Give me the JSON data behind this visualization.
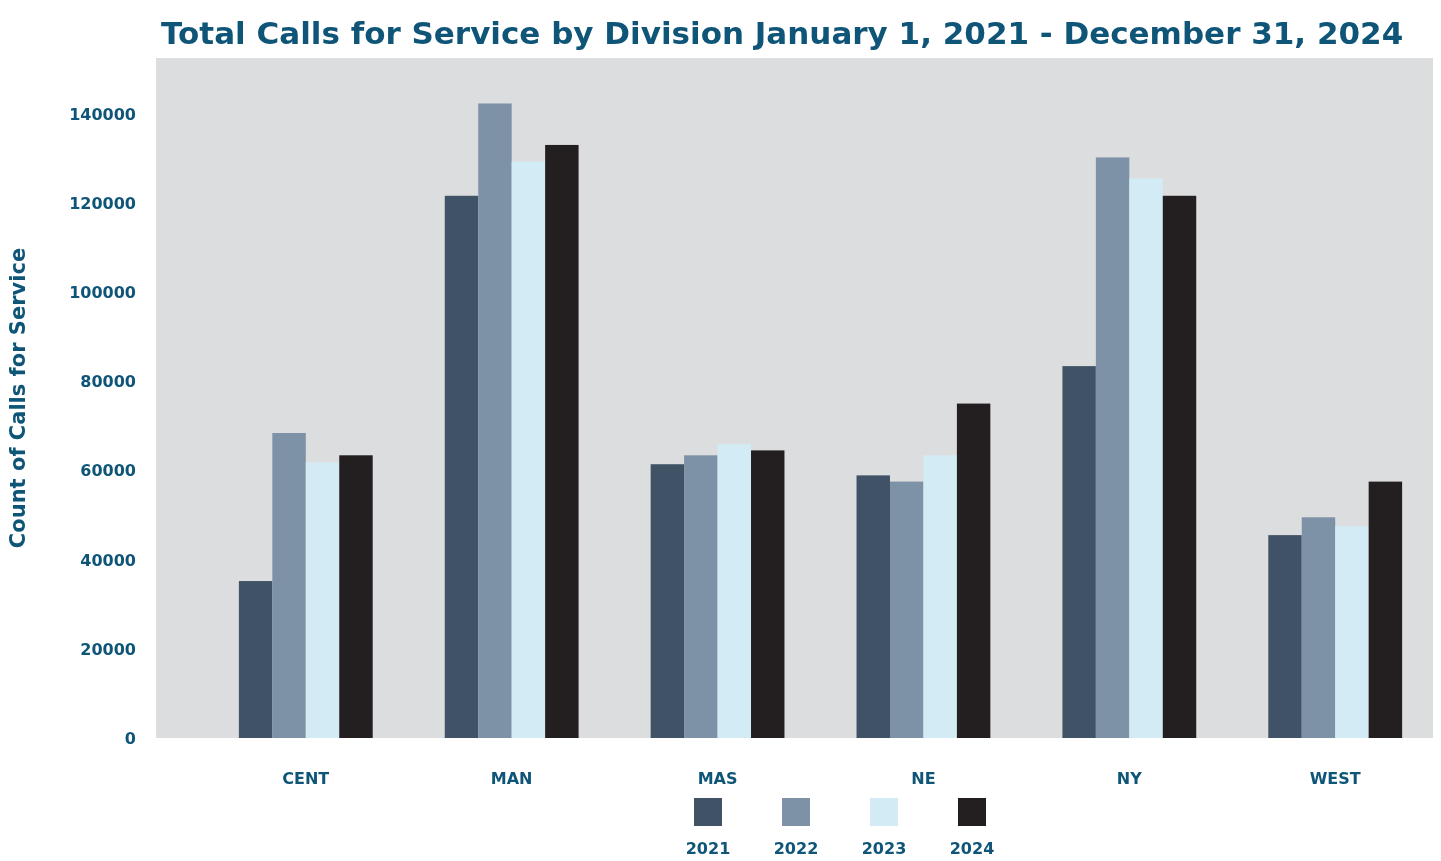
{
  "chart_data": {
    "type": "bar",
    "title": "Total Calls for Service by Division January 1, 2021 - December 31, 2024",
    "ylabel": "Count of Calls for Service",
    "categories": [
      "CENT",
      "MAN",
      "MAS",
      "NE",
      "NY",
      "WEST"
    ],
    "series": [
      {
        "name": "2021",
        "color": "#405366",
        "values": [
          35200,
          121600,
          61400,
          58900,
          83400,
          45500
        ]
      },
      {
        "name": "2022",
        "color": "#7d92a6",
        "values": [
          68400,
          142300,
          63400,
          57500,
          130200,
          49500
        ]
      },
      {
        "name": "2023",
        "color": "#d3ebf5",
        "values": [
          61800,
          129300,
          65900,
          63400,
          125500,
          47500
        ]
      },
      {
        "name": "2024",
        "color": "#231f20",
        "values": [
          63400,
          133000,
          64500,
          75000,
          121600,
          57500
        ]
      }
    ],
    "ylim": [
      0,
      152500
    ],
    "yticks": [
      0,
      20000,
      40000,
      60000,
      80000,
      100000,
      120000,
      140000
    ],
    "grid": false,
    "legend": "bottom"
  }
}
